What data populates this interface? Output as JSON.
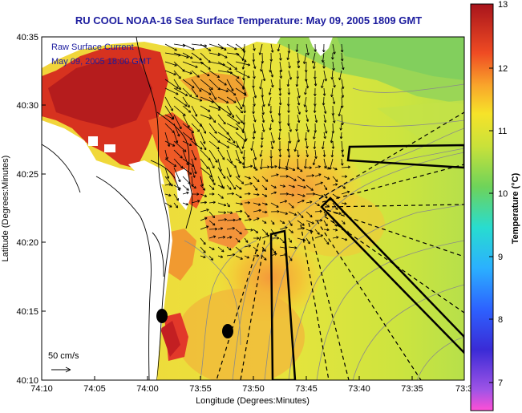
{
  "title": "RU COOL  NOAA-16  Sea Surface Temperature:  May 09, 2005 1809 GMT",
  "annotation": {
    "line1": "Raw Surface Current",
    "line2": "May 09, 2005 18:00 GMT",
    "scale_label": "50 cm/s"
  },
  "axes": {
    "xlabel": "Longitude (Degrees:Minutes)",
    "ylabel": "Latitude (Degrees:Minutes)",
    "xticks": [
      "74:10",
      "74:05",
      "74:00",
      "73:55",
      "73:50",
      "73:45",
      "73:40",
      "73:35",
      "73:3"
    ],
    "yticks": [
      "40:35",
      "40:30",
      "40:25",
      "40:20",
      "40:15",
      "40:10"
    ]
  },
  "colorbar": {
    "label": "Temperature (°C)",
    "ticks": [
      "13",
      "12",
      "11",
      "10",
      "9",
      "8",
      "7"
    ],
    "range": [
      6.7,
      13
    ]
  },
  "colors": {
    "title": "#1c1c9e",
    "land": "#ffffff",
    "warm": "#b41414",
    "cool": "#7ec85a"
  },
  "map_layers": [
    "sst-field",
    "current-vectors",
    "bathymetry-contours",
    "coastline",
    "sampling-boxes",
    "buoy-markers"
  ]
}
